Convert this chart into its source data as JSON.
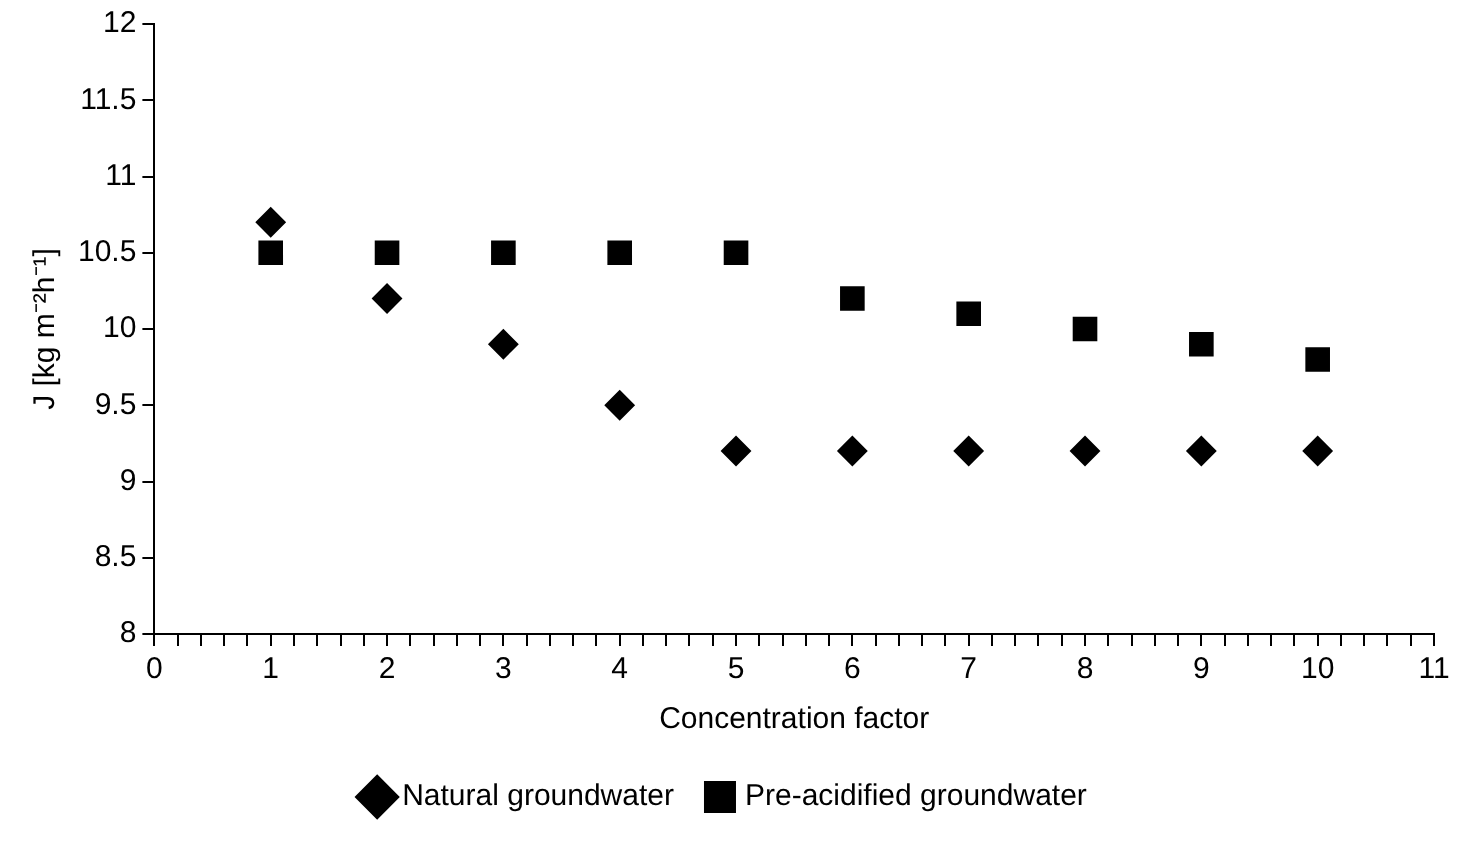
{
  "chart_data": {
    "type": "scatter",
    "xlabel": "Concentration factor",
    "ylabel": "J [kg m⁻²h⁻¹]",
    "x": [
      1,
      2,
      3,
      4,
      5,
      6,
      7,
      8,
      9,
      10
    ],
    "series": [
      {
        "name": "Natural groundwater",
        "color": "#000000",
        "marker": "diamond",
        "values": [
          10.7,
          10.2,
          9.9,
          9.5,
          9.2,
          9.2,
          9.2,
          9.2,
          9.2,
          9.2
        ]
      },
      {
        "name": "Pre-acidified groundwater",
        "color": "#000000",
        "marker": "square",
        "values": [
          10.5,
          10.5,
          10.5,
          10.5,
          10.5,
          10.2,
          10.1,
          10.0,
          9.9,
          9.8
        ]
      }
    ],
    "xlim": [
      0,
      11
    ],
    "xticks": [
      0,
      {
        "value": 0.2,
        "label": null
      },
      {
        "value": 0.4,
        "label": null
      },
      {
        "value": 0.6,
        "label": null
      },
      {
        "value": 0.8,
        "label": null
      },
      1,
      {
        "value": 1.2,
        "label": null
      },
      {
        "value": 1.4,
        "label": null
      },
      {
        "value": 1.6,
        "label": null
      },
      {
        "value": 1.8,
        "label": null
      },
      2,
      {
        "value": 2.2,
        "label": null
      },
      {
        "value": 2.4,
        "label": null
      },
      {
        "value": 2.6,
        "label": null
      },
      {
        "value": 2.8,
        "label": null
      },
      3,
      {
        "value": 3.2,
        "label": null
      },
      {
        "value": 3.4,
        "label": null
      },
      {
        "value": 3.6,
        "label": null
      },
      {
        "value": 3.8,
        "label": null
      },
      4,
      {
        "value": 4.2,
        "label": null
      },
      {
        "value": 4.4,
        "label": null
      },
      {
        "value": 4.6,
        "label": null
      },
      {
        "value": 4.8,
        "label": null
      },
      5,
      {
        "value": 5.2,
        "label": null
      },
      {
        "value": 5.4,
        "label": null
      },
      {
        "value": 5.6,
        "label": null
      },
      {
        "value": 5.8,
        "label": null
      },
      6,
      {
        "value": 6.2,
        "label": null
      },
      {
        "value": 6.4,
        "label": null
      },
      {
        "value": 6.6,
        "label": null
      },
      {
        "value": 6.8,
        "label": null
      },
      7,
      {
        "value": 7.2,
        "label": null
      },
      {
        "value": 7.4,
        "label": null
      },
      {
        "value": 7.6,
        "label": null
      },
      {
        "value": 7.8,
        "label": null
      },
      8,
      {
        "value": 8.2,
        "label": null
      },
      {
        "value": 8.4,
        "label": null
      },
      {
        "value": 8.6,
        "label": null
      },
      {
        "value": 8.8,
        "label": null
      },
      9,
      {
        "value": 9.2,
        "label": null
      },
      {
        "value": 9.4,
        "label": null
      },
      {
        "value": 9.6,
        "label": null
      },
      {
        "value": 9.8,
        "label": null
      },
      10,
      {
        "value": 10.2,
        "label": null
      },
      {
        "value": 10.4,
        "label": null
      },
      {
        "value": 10.6,
        "label": null
      },
      {
        "value": 10.8,
        "label": null
      },
      11
    ],
    "ylim": [
      8,
      12
    ],
    "yticks": [
      8,
      8.5,
      9,
      9.5,
      10,
      10.5,
      11,
      11.5,
      12
    ],
    "grid": false,
    "legend": "bottom"
  }
}
